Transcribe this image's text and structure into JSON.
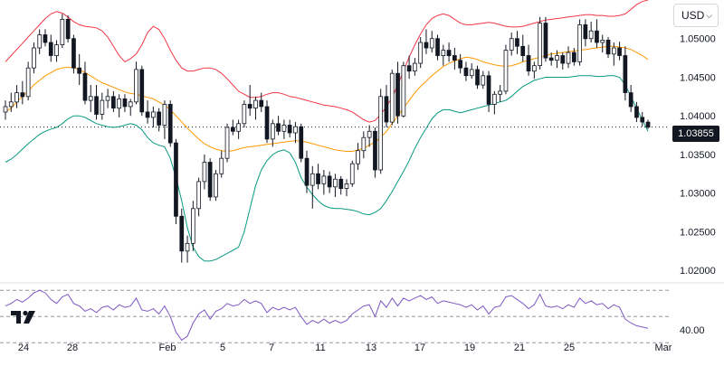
{
  "currency_selector": {
    "label": "USD"
  },
  "last_price": "1.03855",
  "logo_text": "TV",
  "colors": {
    "up": "#ffffff",
    "down": "#131722",
    "outline": "#131722",
    "bb_upper": "#f23645",
    "bb_basis": "#ff9800",
    "bb_lower": "#089981",
    "rsi": "#7e57c2",
    "grid_dash": "#9598a1"
  },
  "chart_data": [
    {
      "type": "candlestick",
      "overlays": [
        "bollinger_upper",
        "bollinger_basis",
        "bollinger_lower"
      ],
      "ylim": [
        1.0185,
        1.055
      ],
      "y_ticks": [
        "1.05000",
        "1.04500",
        "1.04000",
        "1.03500",
        "1.03000",
        "1.02500",
        "1.02000"
      ],
      "x_ticks": [
        "24",
        "28",
        "Feb",
        "5",
        "7",
        "11",
        "13",
        "17",
        "19",
        "21",
        "25",
        "Mar"
      ],
      "last_price": 1.03855,
      "ohlc": [
        [
          1.0405,
          1.042,
          1.0395,
          1.0412
        ],
        [
          1.0412,
          1.043,
          1.0405,
          1.0418
        ],
        [
          1.0418,
          1.044,
          1.041,
          1.043
        ],
        [
          1.043,
          1.0445,
          1.0415,
          1.0425
        ],
        [
          1.0425,
          1.047,
          1.042,
          1.0462
        ],
        [
          1.0462,
          1.0495,
          1.0455,
          1.0488
        ],
        [
          1.0488,
          1.0512,
          1.048,
          1.0505
        ],
        [
          1.0505,
          1.0512,
          1.049,
          1.0495
        ],
        [
          1.0495,
          1.0505,
          1.047,
          1.0478
        ],
        [
          1.0478,
          1.0498,
          1.047,
          1.0492
        ],
        [
          1.0492,
          1.0532,
          1.0488,
          1.0525
        ],
        [
          1.0525,
          1.053,
          1.0495,
          1.05
        ],
        [
          1.05,
          1.0505,
          1.0455,
          1.0462
        ],
        [
          1.0462,
          1.048,
          1.044,
          1.0455
        ],
        [
          1.0455,
          1.047,
          1.0415,
          1.042
        ],
        [
          1.042,
          1.044,
          1.0405,
          1.0425
        ],
        [
          1.0425,
          1.044,
          1.0395,
          1.0402
        ],
        [
          1.0402,
          1.043,
          1.0395,
          1.042
        ],
        [
          1.042,
          1.0435,
          1.041,
          1.0425
        ],
        [
          1.0425,
          1.0432,
          1.0405,
          1.041
        ],
        [
          1.041,
          1.0428,
          1.0398,
          1.0422
        ],
        [
          1.0422,
          1.0428,
          1.0405,
          1.0412
        ],
        [
          1.0412,
          1.0422,
          1.04,
          1.0418
        ],
        [
          1.0418,
          1.047,
          1.0415,
          1.046
        ],
        [
          1.046,
          1.0465,
          1.04,
          1.0405
        ],
        [
          1.0405,
          1.042,
          1.039,
          1.0398
        ],
        [
          1.0398,
          1.0412,
          1.0385,
          1.0405
        ],
        [
          1.0405,
          1.041,
          1.038,
          1.0388
        ],
        [
          1.0388,
          1.042,
          1.037,
          1.0415
        ],
        [
          1.0415,
          1.042,
          1.036,
          1.0365
        ],
        [
          1.0365,
          1.037,
          1.026,
          1.027
        ],
        [
          1.027,
          1.028,
          1.021,
          1.0225
        ],
        [
          1.0225,
          1.0245,
          1.021,
          1.0235
        ],
        [
          1.0235,
          1.029,
          1.0225,
          1.028
        ],
        [
          1.028,
          1.032,
          1.027,
          1.0315
        ],
        [
          1.0315,
          1.035,
          1.0305,
          1.034
        ],
        [
          1.034,
          1.0345,
          1.029,
          1.0295
        ],
        [
          1.0295,
          1.033,
          1.029,
          1.0325
        ],
        [
          1.0325,
          1.0355,
          1.032,
          1.0345
        ],
        [
          1.0345,
          1.039,
          1.034,
          1.0385
        ],
        [
          1.0385,
          1.0395,
          1.0375,
          1.038
        ],
        [
          1.038,
          1.0395,
          1.037,
          1.039
        ],
        [
          1.039,
          1.042,
          1.0385,
          1.0415
        ],
        [
          1.0415,
          1.044,
          1.04,
          1.041
        ],
        [
          1.041,
          1.0425,
          1.0395,
          1.042
        ],
        [
          1.042,
          1.043,
          1.0405,
          1.0412
        ],
        [
          1.0412,
          1.042,
          1.0365,
          1.037
        ],
        [
          1.037,
          1.0395,
          1.036,
          1.039
        ],
        [
          1.039,
          1.04,
          1.0375,
          1.038
        ],
        [
          1.038,
          1.0395,
          1.037,
          1.0388
        ],
        [
          1.0388,
          1.0395,
          1.0372,
          1.0378
        ],
        [
          1.0378,
          1.0392,
          1.0365,
          1.0386
        ],
        [
          1.0386,
          1.039,
          1.034,
          1.0345
        ],
        [
          1.0345,
          1.0355,
          1.03,
          1.031
        ],
        [
          1.031,
          1.0335,
          1.028,
          1.0325
        ],
        [
          1.0325,
          1.0338,
          1.0305,
          1.0312
        ],
        [
          1.0312,
          1.033,
          1.0298,
          1.0322
        ],
        [
          1.0322,
          1.0328,
          1.03,
          1.0308
        ],
        [
          1.0308,
          1.0325,
          1.0295,
          1.0318
        ],
        [
          1.0318,
          1.0322,
          1.0298,
          1.0306
        ],
        [
          1.0306,
          1.0318,
          1.0296,
          1.0312
        ],
        [
          1.0312,
          1.0342,
          1.0308,
          1.0338
        ],
        [
          1.0338,
          1.0365,
          1.033,
          1.0355
        ],
        [
          1.0355,
          1.038,
          1.0345,
          1.0372
        ],
        [
          1.0372,
          1.0388,
          1.036,
          1.038
        ],
        [
          1.038,
          1.0385,
          1.032,
          1.033
        ],
        [
          1.033,
          1.0435,
          1.0325,
          1.0425
        ],
        [
          1.0425,
          1.044,
          1.0385,
          1.0392
        ],
        [
          1.0392,
          1.046,
          1.0388,
          1.0455
        ],
        [
          1.0455,
          1.047,
          1.039,
          1.04
        ],
        [
          1.04,
          1.047,
          1.0398,
          1.0465
        ],
        [
          1.0465,
          1.0478,
          1.0448,
          1.0458
        ],
        [
          1.0458,
          1.0475,
          1.0452,
          1.0468
        ],
        [
          1.0468,
          1.0502,
          1.0462,
          1.0495
        ],
        [
          1.0495,
          1.0512,
          1.048,
          1.0488
        ],
        [
          1.0488,
          1.051,
          1.0482,
          1.05
        ],
        [
          1.05,
          1.0505,
          1.0472,
          1.0478
        ],
        [
          1.0478,
          1.0492,
          1.0465,
          1.0485
        ],
        [
          1.0485,
          1.0495,
          1.047,
          1.0478
        ],
        [
          1.0478,
          1.0488,
          1.046,
          1.0472
        ],
        [
          1.0472,
          1.048,
          1.0455,
          1.0462
        ],
        [
          1.0462,
          1.047,
          1.0445,
          1.0452
        ],
        [
          1.0452,
          1.0468,
          1.0448,
          1.046
        ],
        [
          1.046,
          1.0465,
          1.0435,
          1.044
        ],
        [
          1.044,
          1.0458,
          1.0435,
          1.0452
        ],
        [
          1.0452,
          1.0458,
          1.0405,
          1.0415
        ],
        [
          1.0415,
          1.0432,
          1.0402,
          1.0428
        ],
        [
          1.0428,
          1.044,
          1.0418,
          1.0432
        ],
        [
          1.0432,
          1.0492,
          1.0428,
          1.0485
        ],
        [
          1.0485,
          1.0508,
          1.0478,
          1.05
        ],
        [
          1.05,
          1.051,
          1.048,
          1.049
        ],
        [
          1.049,
          1.0505,
          1.047,
          1.0478
        ],
        [
          1.0478,
          1.0492,
          1.0452,
          1.0458
        ],
        [
          1.0458,
          1.047,
          1.0448,
          1.0465
        ],
        [
          1.0465,
          1.0528,
          1.046,
          1.052
        ],
        [
          1.052,
          1.0528,
          1.047,
          1.0475
        ],
        [
          1.0475,
          1.0482,
          1.0465,
          1.0472
        ],
        [
          1.0472,
          1.0485,
          1.0462,
          1.0478
        ],
        [
          1.0478,
          1.0482,
          1.046,
          1.0468
        ],
        [
          1.0468,
          1.049,
          1.0462,
          1.0482
        ],
        [
          1.0482,
          1.0488,
          1.0465,
          1.047
        ],
        [
          1.047,
          1.0525,
          1.0465,
          1.0518
        ],
        [
          1.0518,
          1.0525,
          1.049,
          1.05
        ],
        [
          1.05,
          1.0522,
          1.0495,
          1.051
        ],
        [
          1.051,
          1.0525,
          1.0488,
          1.0495
        ],
        [
          1.0495,
          1.0505,
          1.0482,
          1.0498
        ],
        [
          1.0498,
          1.0502,
          1.0475,
          1.048
        ],
        [
          1.048,
          1.0495,
          1.0465,
          1.0488
        ],
        [
          1.0488,
          1.0496,
          1.0472,
          1.0478
        ],
        [
          1.0478,
          1.049,
          1.042,
          1.043
        ],
        [
          1.043,
          1.044,
          1.0405,
          1.0412
        ],
        [
          1.0412,
          1.0418,
          1.0392,
          1.0398
        ],
        [
          1.0398,
          1.0405,
          1.0386,
          1.0392
        ],
        [
          1.0392,
          1.0395,
          1.0383,
          1.03855
        ]
      ],
      "bb_upper": [
        1.047,
        1.0478,
        1.0486,
        1.0494,
        1.0502,
        1.051,
        1.0518,
        1.0526,
        1.0532,
        1.0535,
        1.0533,
        1.0528,
        1.0522,
        1.0518,
        1.0516,
        1.0515,
        1.0514,
        1.051,
        1.0502,
        1.049,
        1.0478,
        1.047,
        1.0474,
        1.048,
        1.0492,
        1.0508,
        1.0516,
        1.0512,
        1.05,
        1.0485,
        1.0472,
        1.0462,
        1.0458,
        1.0458,
        1.046,
        1.0462,
        1.0462,
        1.046,
        1.0455,
        1.0448,
        1.044,
        1.0432,
        1.0428,
        1.0424,
        1.0424,
        1.0425,
        1.0428,
        1.043,
        1.043,
        1.0428,
        1.0425,
        1.0424,
        1.0422,
        1.042,
        1.0418,
        1.0416,
        1.0414,
        1.0413,
        1.0412,
        1.041,
        1.0408,
        1.0405,
        1.04,
        1.0395,
        1.0392,
        1.0394,
        1.0402,
        1.0412,
        1.0424,
        1.044,
        1.0458,
        1.0476,
        1.0492,
        1.0506,
        1.0518,
        1.0526,
        1.053,
        1.0532,
        1.053,
        1.0525,
        1.052,
        1.0518,
        1.0518,
        1.0519,
        1.052,
        1.0521,
        1.052,
        1.0518,
        1.0516,
        1.0515,
        1.0515,
        1.0516,
        1.0518,
        1.052,
        1.0522,
        1.0524,
        1.0525,
        1.0526,
        1.0527,
        1.0528,
        1.0529,
        1.053,
        1.0531,
        1.0531,
        1.053,
        1.053,
        1.0529,
        1.0529,
        1.053,
        1.0532,
        1.0538,
        1.0544,
        1.0548,
        1.055
      ],
      "bb_basis": [
        1.0405,
        1.041,
        1.0418,
        1.0425,
        1.0432,
        1.044,
        1.0446,
        1.0452,
        1.0456,
        1.046,
        1.0462,
        1.0463,
        1.0462,
        1.046,
        1.0456,
        1.0452,
        1.0447,
        1.0443,
        1.044,
        1.0437,
        1.0434,
        1.0431,
        1.0429,
        1.0428,
        1.0426,
        1.0424,
        1.0422,
        1.0418,
        1.0414,
        1.0408,
        1.04,
        1.0392,
        1.0384,
        1.0377,
        1.037,
        1.0364,
        1.036,
        1.0357,
        1.0355,
        1.0354,
        1.0355,
        1.0357,
        1.0359,
        1.036,
        1.0361,
        1.0362,
        1.0363,
        1.0364,
        1.0365,
        1.0366,
        1.0367,
        1.0368,
        1.0367,
        1.0366,
        1.0364,
        1.0362,
        1.036,
        1.0358,
        1.0356,
        1.0355,
        1.0354,
        1.0354,
        1.0356,
        1.0358,
        1.0362,
        1.0366,
        1.0372,
        1.038,
        1.039,
        1.04,
        1.041,
        1.042,
        1.043,
        1.0438,
        1.0445,
        1.0452,
        1.0458,
        1.0464,
        1.0468,
        1.0471,
        1.0474,
        1.0476,
        1.0475,
        1.0473,
        1.047,
        1.0468,
        1.0466,
        1.0465,
        1.0464,
        1.0465,
        1.0467,
        1.047,
        1.0472,
        1.0474,
        1.0476,
        1.0478,
        1.048,
        1.0481,
        1.0482,
        1.0483,
        1.0484,
        1.0485,
        1.0486,
        1.0487,
        1.0488,
        1.0489,
        1.049,
        1.049,
        1.0489,
        1.0488,
        1.0486,
        1.0482,
        1.0478,
        1.0473
      ],
      "bb_lower": [
        1.034,
        1.0344,
        1.035,
        1.0357,
        1.0364,
        1.037,
        1.0376,
        1.038,
        1.0383,
        1.0385,
        1.039,
        1.0396,
        1.04,
        1.04,
        1.0398,
        1.0394,
        1.039,
        1.0388,
        1.0386,
        1.0385,
        1.0386,
        1.0388,
        1.039,
        1.0388,
        1.0382,
        1.0372,
        1.0365,
        1.0362,
        1.036,
        1.0345,
        1.032,
        1.029,
        1.0255,
        1.023,
        1.0218,
        1.0212,
        1.0212,
        1.0214,
        1.0218,
        1.0222,
        1.0226,
        1.023,
        1.025,
        1.028,
        1.031,
        1.033,
        1.0342,
        1.035,
        1.0354,
        1.0356,
        1.0352,
        1.034,
        1.032,
        1.0308,
        1.0298,
        1.029,
        1.0284,
        1.0281,
        1.028,
        1.028,
        1.0279,
        1.0278,
        1.0276,
        1.0273,
        1.0272,
        1.0275,
        1.028,
        1.029,
        1.0302,
        1.0315,
        1.0328,
        1.0342,
        1.0358,
        1.0372,
        1.0384,
        1.0396,
        1.0404,
        1.0408,
        1.0408,
        1.0406,
        1.0404,
        1.0406,
        1.0408,
        1.041,
        1.0412,
        1.0414,
        1.0416,
        1.0418,
        1.042,
        1.0425,
        1.0432,
        1.0438,
        1.0442,
        1.0446,
        1.0448,
        1.045,
        1.045,
        1.045,
        1.045,
        1.045,
        1.0451,
        1.0452,
        1.0452,
        1.0452,
        1.0451,
        1.0451,
        1.0452,
        1.0452,
        1.045,
        1.044,
        1.0425,
        1.041,
        1.0395,
        1.038
      ]
    },
    {
      "type": "line",
      "indicator": "RSI",
      "ylim": [
        35,
        75
      ],
      "y_ticks": [
        "40.00"
      ],
      "levels": [
        70,
        50,
        30
      ],
      "values": [
        58,
        60,
        63,
        61,
        64,
        68,
        70,
        68,
        63,
        60,
        65,
        67,
        60,
        58,
        54,
        56,
        53,
        57,
        58,
        55,
        59,
        57,
        58,
        64,
        55,
        54,
        56,
        52,
        58,
        50,
        38,
        32,
        35,
        45,
        52,
        55,
        48,
        54,
        56,
        60,
        58,
        59,
        63,
        60,
        62,
        60,
        53,
        57,
        55,
        57,
        55,
        57,
        50,
        44,
        47,
        45,
        48,
        45,
        47,
        45,
        47,
        52,
        55,
        58,
        59,
        50,
        62,
        57,
        64,
        58,
        64,
        62,
        64,
        66,
        63,
        65,
        60,
        62,
        61,
        60,
        59,
        57,
        59,
        55,
        58,
        52,
        57,
        58,
        65,
        66,
        63,
        60,
        56,
        59,
        67,
        58,
        57,
        58,
        56,
        59,
        57,
        64,
        60,
        62,
        59,
        60,
        56,
        59,
        57,
        48,
        45,
        43,
        42,
        41
      ]
    }
  ]
}
